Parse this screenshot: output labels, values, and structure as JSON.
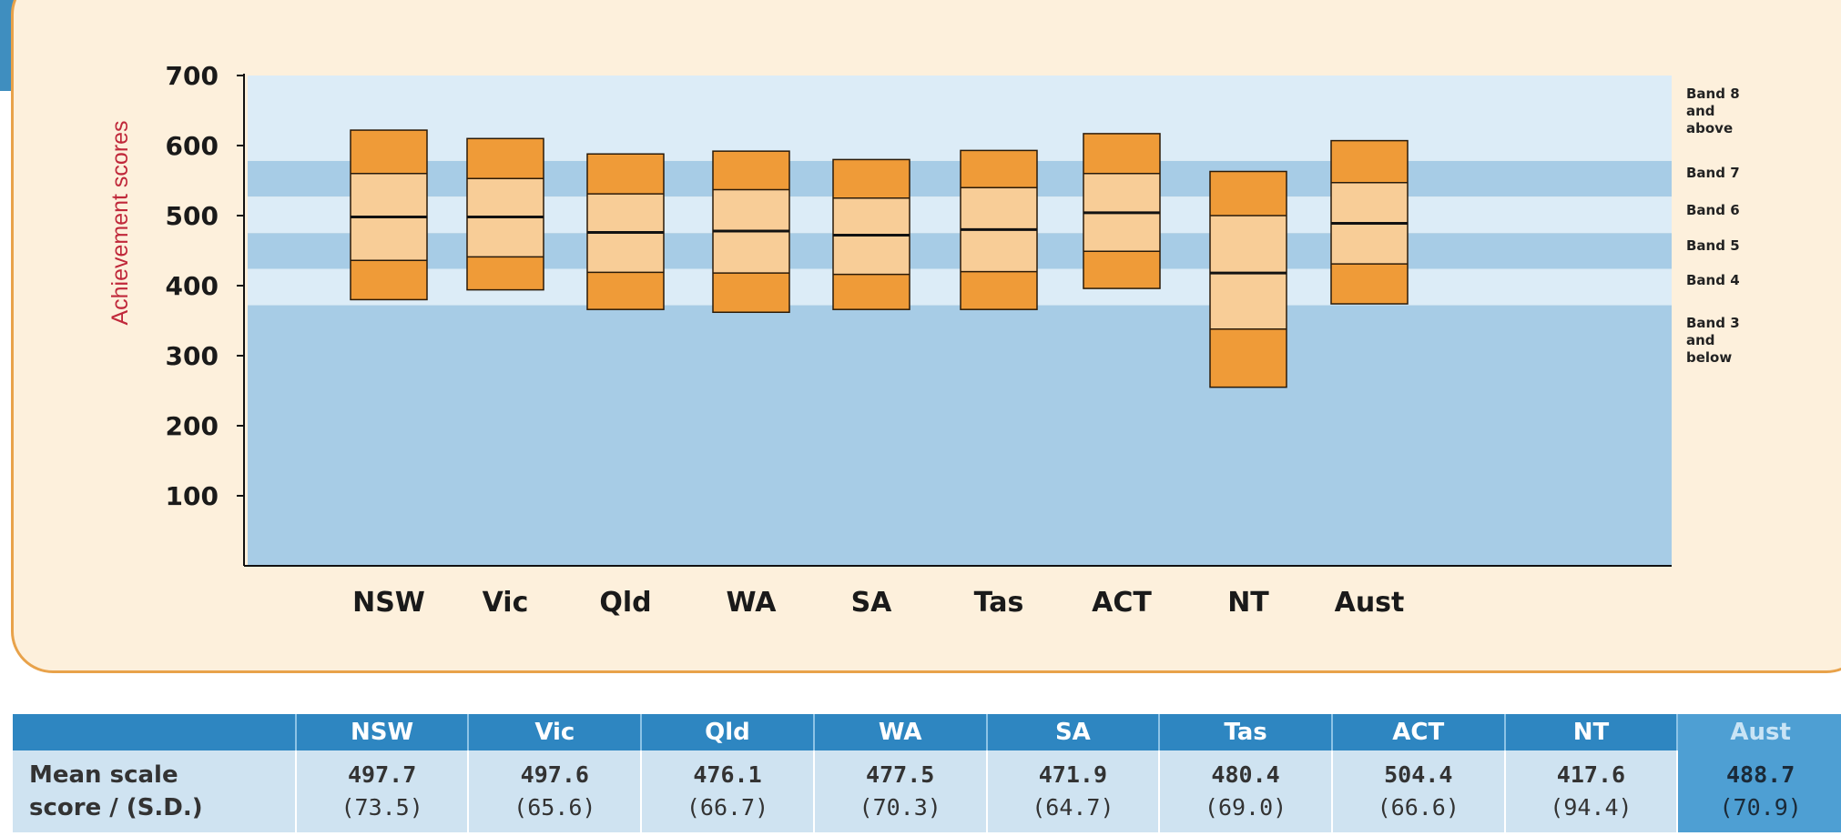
{
  "chart_data": {
    "type": "box",
    "ylabel": "Achievement scores",
    "yticks": [
      100,
      200,
      300,
      400,
      500,
      600,
      700
    ],
    "ylim": [
      0,
      700
    ],
    "bands": [
      {
        "label_lines": [
          "Band 8",
          "and",
          "above"
        ],
        "min": 578,
        "max": 700
      },
      {
        "label_lines": [
          "Band 7"
        ],
        "min": 527,
        "max": 578
      },
      {
        "label_lines": [
          "Band 6"
        ],
        "min": 475,
        "max": 527
      },
      {
        "label_lines": [
          "Band 5"
        ],
        "min": 424,
        "max": 475
      },
      {
        "label_lines": [
          "Band 4"
        ],
        "min": 372,
        "max": 424
      },
      {
        "label_lines": [
          "Band 3",
          "and",
          "below"
        ],
        "min": 0,
        "max": 372
      }
    ],
    "categories": [
      "NSW",
      "Vic",
      "Qld",
      "WA",
      "SA",
      "Tas",
      "ACT",
      "NT",
      "Aust"
    ],
    "percentiles": [
      {
        "category": "NSW",
        "p5": 380,
        "p25": 436,
        "mean": 498,
        "p75": 560,
        "p95": 622
      },
      {
        "category": "Vic",
        "p5": 394,
        "p25": 441,
        "mean": 498,
        "p75": 553,
        "p95": 610
      },
      {
        "category": "Qld",
        "p5": 366,
        "p25": 419,
        "mean": 476,
        "p75": 531,
        "p95": 588
      },
      {
        "category": "WA",
        "p5": 362,
        "p25": 418,
        "mean": 478,
        "p75": 537,
        "p95": 592
      },
      {
        "category": "SA",
        "p5": 366,
        "p25": 416,
        "mean": 472,
        "p75": 525,
        "p95": 580
      },
      {
        "category": "Tas",
        "p5": 366,
        "p25": 420,
        "mean": 480,
        "p75": 540,
        "p95": 593
      },
      {
        "category": "ACT",
        "p5": 396,
        "p25": 449,
        "mean": 504,
        "p75": 560,
        "p95": 617
      },
      {
        "category": "NT",
        "p5": 255,
        "p25": 338,
        "mean": 418,
        "p75": 500,
        "p95": 563
      },
      {
        "category": "Aust",
        "p5": 374,
        "p25": 431,
        "mean": 489,
        "p75": 547,
        "p95": 607
      }
    ]
  },
  "table": {
    "row_label_lines": [
      "Mean scale",
      "score / (S.D.)"
    ],
    "columns": [
      {
        "name": "NSW",
        "mean": "497.7",
        "sd": "(73.5)"
      },
      {
        "name": "Vic",
        "mean": "497.6",
        "sd": "(65.6)"
      },
      {
        "name": "Qld",
        "mean": "476.1",
        "sd": "(66.7)"
      },
      {
        "name": "WA",
        "mean": "477.5",
        "sd": "(70.3)"
      },
      {
        "name": "SA",
        "mean": "471.9",
        "sd": "(64.7)"
      },
      {
        "name": "Tas",
        "mean": "480.4",
        "sd": "(69.0)"
      },
      {
        "name": "ACT",
        "mean": "504.4",
        "sd": "(66.6)"
      },
      {
        "name": "NT",
        "mean": "417.6",
        "sd": "(94.4)"
      },
      {
        "name": "Aust",
        "mean": "488.7",
        "sd": "(70.9)"
      }
    ]
  },
  "colors": {
    "band_dark": "#a7cce6",
    "band_light": "#dcecf7",
    "box_outer": "#ef9b38",
    "box_inner": "#f8cd97",
    "table_header": "#2e86c1",
    "table_cell": "#cfe3f1"
  }
}
